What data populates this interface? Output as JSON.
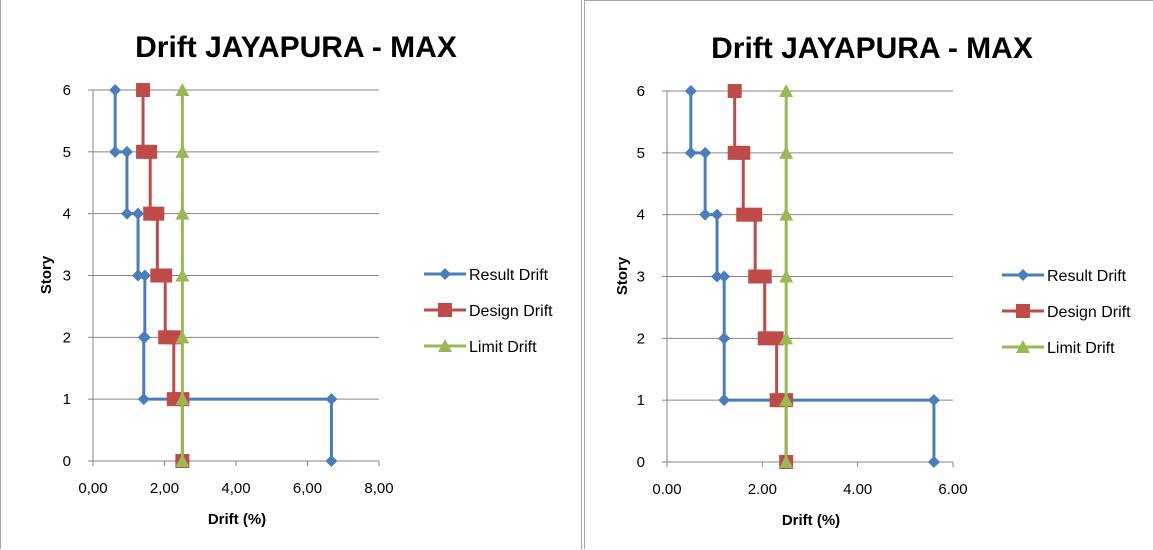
{
  "chart_data": [
    {
      "type": "line",
      "title": "Drift JAYAPURA - MAX",
      "xlabel": "Drift (%)",
      "ylabel": "Story",
      "xlim": [
        0,
        8
      ],
      "ylim": [
        0,
        6
      ],
      "x_ticks": [
        "0,00",
        "2,00",
        "4,00",
        "6,00",
        "8,00"
      ],
      "y_ticks": [
        "0",
        "1",
        "2",
        "3",
        "4",
        "5",
        "6"
      ],
      "grid": "horizontal",
      "legend_position": "right",
      "series": [
        {
          "name": "Result Drift",
          "color": "#4a7ebb",
          "marker": "diamond",
          "points": [
            [
              6.67,
              0
            ],
            [
              6.67,
              1
            ],
            [
              1.42,
              1
            ],
            [
              1.42,
              2
            ],
            [
              1.45,
              2
            ],
            [
              1.45,
              3
            ],
            [
              1.26,
              3
            ],
            [
              1.26,
              4
            ],
            [
              0.95,
              4
            ],
            [
              0.95,
              5
            ],
            [
              0.62,
              5
            ],
            [
              0.62,
              6
            ]
          ]
        },
        {
          "name": "Design Drift",
          "color": "#be4b48",
          "marker": "square",
          "points": [
            [
              2.5,
              0
            ],
            [
              2.5,
              1
            ],
            [
              2.26,
              1
            ],
            [
              2.26,
              2
            ],
            [
              2.02,
              2
            ],
            [
              2.02,
              3
            ],
            [
              1.8,
              3
            ],
            [
              1.8,
              4
            ],
            [
              1.6,
              4
            ],
            [
              1.6,
              5
            ],
            [
              1.4,
              5
            ],
            [
              1.4,
              6
            ]
          ]
        },
        {
          "name": "Limit Drift",
          "color": "#98b954",
          "marker": "triangle",
          "points": [
            [
              2.5,
              0
            ],
            [
              2.5,
              1
            ],
            [
              2.5,
              2
            ],
            [
              2.5,
              3
            ],
            [
              2.5,
              4
            ],
            [
              2.5,
              5
            ],
            [
              2.5,
              6
            ]
          ]
        }
      ]
    },
    {
      "type": "line",
      "title": "Drift JAYAPURA - MAX",
      "xlabel": "Drift (%)",
      "ylabel": "Story",
      "xlim": [
        0,
        6
      ],
      "ylim": [
        0,
        6
      ],
      "x_ticks": [
        "0.00",
        "2.00",
        "4.00",
        "6.00"
      ],
      "y_ticks": [
        "0",
        "1",
        "2",
        "3",
        "4",
        "5",
        "6"
      ],
      "grid": "horizontal",
      "legend_position": "right",
      "series": [
        {
          "name": "Result Drift",
          "color": "#4a7ebb",
          "marker": "diamond",
          "points": [
            [
              5.6,
              0
            ],
            [
              5.6,
              1
            ],
            [
              1.2,
              1
            ],
            [
              1.2,
              2
            ],
            [
              1.2,
              2
            ],
            [
              1.2,
              3
            ],
            [
              1.05,
              3
            ],
            [
              1.05,
              4
            ],
            [
              0.8,
              4
            ],
            [
              0.8,
              5
            ],
            [
              0.5,
              5
            ],
            [
              0.5,
              6
            ]
          ]
        },
        {
          "name": "Design Drift",
          "color": "#be4b48",
          "marker": "square",
          "points": [
            [
              2.5,
              0
            ],
            [
              2.5,
              1
            ],
            [
              2.3,
              1
            ],
            [
              2.3,
              2
            ],
            [
              2.05,
              2
            ],
            [
              2.05,
              3
            ],
            [
              1.85,
              3
            ],
            [
              1.85,
              4
            ],
            [
              1.6,
              4
            ],
            [
              1.6,
              5
            ],
            [
              1.42,
              5
            ],
            [
              1.42,
              6
            ]
          ]
        },
        {
          "name": "Limit Drift",
          "color": "#98b954",
          "marker": "triangle",
          "points": [
            [
              2.5,
              0
            ],
            [
              2.5,
              1
            ],
            [
              2.5,
              2
            ],
            [
              2.5,
              3
            ],
            [
              2.5,
              4
            ],
            [
              2.5,
              5
            ],
            [
              2.5,
              6
            ]
          ]
        }
      ]
    }
  ]
}
